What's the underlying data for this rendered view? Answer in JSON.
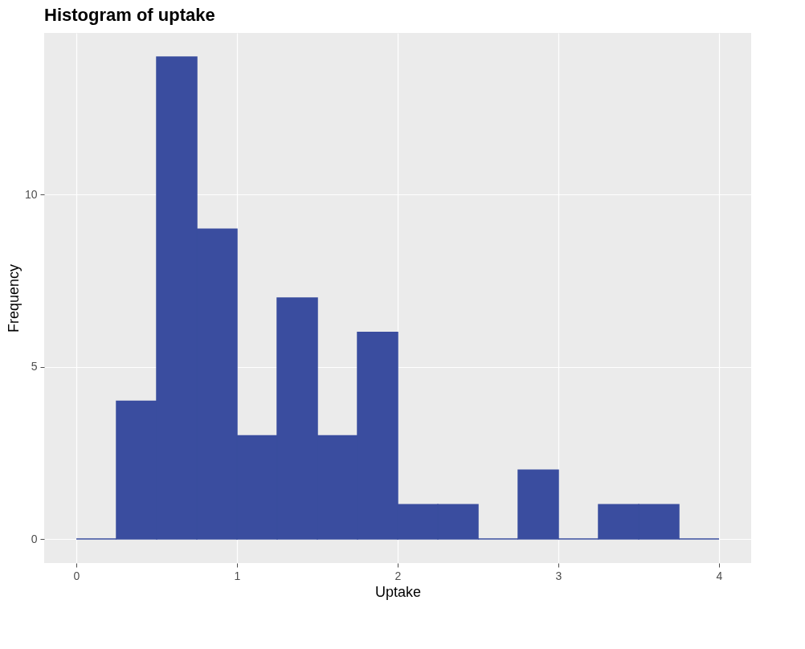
{
  "chart_data": {
    "type": "histogram",
    "title": "Histogram of uptake",
    "xlabel": "Uptake",
    "ylabel": "Frequency",
    "bins": [
      0,
      0.25,
      0.5,
      0.75,
      1,
      1.25,
      1.5,
      1.75,
      2,
      2.25,
      2.5,
      2.75,
      3,
      3.25,
      3.5,
      3.75,
      4
    ],
    "values": [
      0,
      4,
      14,
      9,
      3,
      7,
      3,
      6,
      1,
      1,
      0,
      2,
      0,
      1,
      1,
      0
    ],
    "color": "#3a4d9f",
    "xlim": [
      -0.2,
      4.2
    ],
    "xticks": [
      0,
      1,
      2,
      3,
      4
    ],
    "ylim": [
      -0.7,
      14.7
    ],
    "yticks": [
      0,
      5,
      10
    ],
    "grid": true
  }
}
